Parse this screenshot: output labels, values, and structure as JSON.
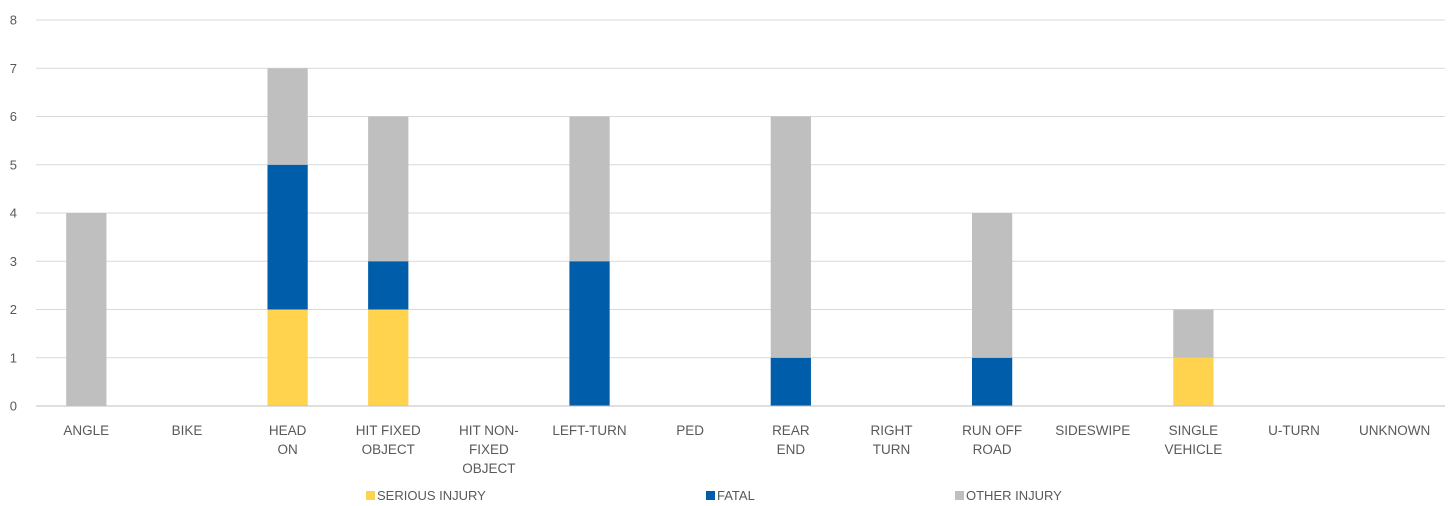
{
  "chart_data": {
    "type": "bar",
    "stacked": true,
    "categories": [
      [
        "ANGLE"
      ],
      [
        "BIKE"
      ],
      [
        "HEAD",
        "ON"
      ],
      [
        "HIT FIXED",
        "OBJECT"
      ],
      [
        "HIT NON-",
        "FIXED",
        "OBJECT"
      ],
      [
        "LEFT-TURN"
      ],
      [
        "PED"
      ],
      [
        "REAR",
        "END"
      ],
      [
        "RIGHT",
        "TURN"
      ],
      [
        "RUN OFF",
        "ROAD"
      ],
      [
        "SIDESWIPE"
      ],
      [
        "SINGLE",
        "VEHICLE"
      ],
      [
        "U-TURN"
      ],
      [
        "UNKNOWN"
      ]
    ],
    "series": [
      {
        "name": "SERIOUS INJURY",
        "color": "#FFD34E",
        "values": [
          0,
          0,
          2,
          2,
          0,
          0,
          0,
          0,
          0,
          0,
          0,
          1,
          0,
          0
        ]
      },
      {
        "name": "FATAL",
        "color": "#005DAA",
        "values": [
          0,
          0,
          3,
          1,
          0,
          3,
          0,
          1,
          0,
          1,
          0,
          0,
          0,
          0
        ]
      },
      {
        "name": "OTHER INJURY",
        "color": "#BFBFBF",
        "values": [
          4,
          0,
          2,
          3,
          0,
          3,
          0,
          5,
          0,
          3,
          0,
          1,
          0,
          0
        ]
      }
    ],
    "yticks": [
      "0",
      "1",
      "2",
      "3",
      "4",
      "5",
      "6",
      "7",
      "8"
    ],
    "ylim": [
      0,
      8
    ],
    "grid": true,
    "legend": "bottom"
  }
}
